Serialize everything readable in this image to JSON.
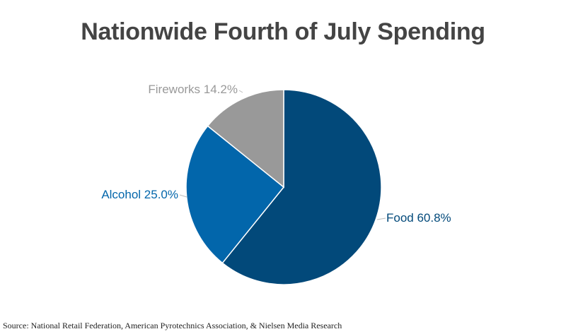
{
  "chart_data": {
    "type": "pie",
    "title": "Nationwide Fourth of July Spending",
    "source": "Source: National Retail Federation, American Pyrotechnics Association, & Nielsen Media Research",
    "unit": "%",
    "slices": [
      {
        "name": "Food",
        "value": 60.8,
        "label": "Food 60.8%",
        "color": "#02497a"
      },
      {
        "name": "Alcohol",
        "value": 25.0,
        "label": "Alcohol 25.0%",
        "color": "#0266ab"
      },
      {
        "name": "Fireworks",
        "value": 14.2,
        "label": "Fireworks 14.2%",
        "color": "#999999"
      }
    ],
    "start_angle_deg": 0,
    "direction": "clockwise",
    "legend": "none",
    "label_colors": {
      "Food": "#02497a",
      "Alcohol": "#0266ab",
      "Fireworks": "#999999"
    }
  }
}
